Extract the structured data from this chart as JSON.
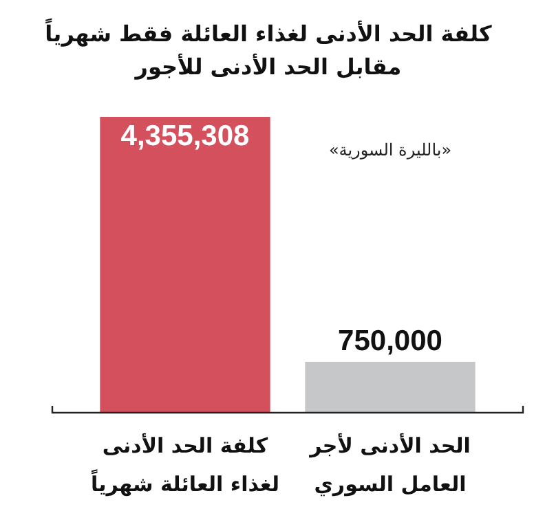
{
  "chart_data": {
    "type": "bar",
    "title": "كلفة الحد الأدنى لغذاء العائلة فقط شهرياً",
    "subtitle": "مقابل الحد الأدنى للأجور",
    "annotations": [
      "«بالليرة السورية»"
    ],
    "categories": [
      "كلفة الحد الأدنى لغذاء العائلة شهرياً",
      "الحد الأدنى لأجر العامل السوري"
    ],
    "values": [
      4355308,
      750000
    ],
    "value_labels": [
      "4,355,308",
      "750,000"
    ],
    "colors": [
      "#d4505d",
      "#c6c7c9"
    ],
    "legend": false
  }
}
